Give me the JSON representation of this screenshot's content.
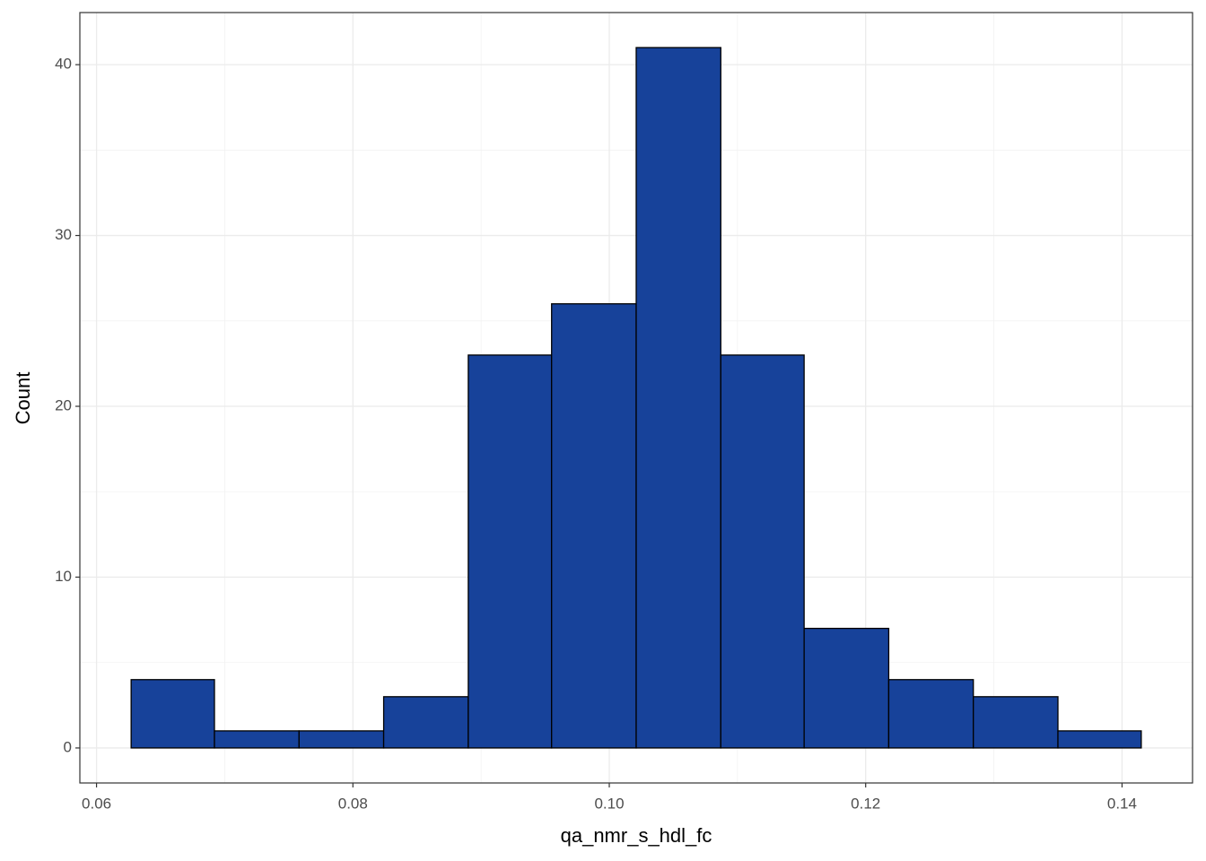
{
  "chart_data": {
    "type": "histogram",
    "x_label": "qa_nmr_s_hdl_fc",
    "y_label": "Count",
    "bins": [
      0.0627,
      0.0692,
      0.0758,
      0.0824,
      0.089,
      0.0955,
      0.1021,
      0.1087,
      0.1152,
      0.1218,
      0.1284,
      0.135,
      0.1415
    ],
    "values": [
      4,
      1,
      1,
      3,
      23,
      26,
      41,
      23,
      7,
      4,
      3,
      1
    ],
    "color": "#17429a",
    "edgecolor": "#000000",
    "xlim": [
      0.0587,
      0.1455
    ],
    "ylim": [
      -2.05,
      43.05
    ],
    "xticks": [
      {
        "value": 0.06,
        "label": "0.06"
      },
      {
        "value": 0.08,
        "label": "0.08"
      },
      {
        "value": 0.1,
        "label": "0.10"
      },
      {
        "value": 0.12,
        "label": "0.12"
      },
      {
        "value": 0.14,
        "label": "0.14"
      }
    ],
    "yticks": [
      0,
      10,
      20,
      30,
      40
    ],
    "grid": true
  }
}
